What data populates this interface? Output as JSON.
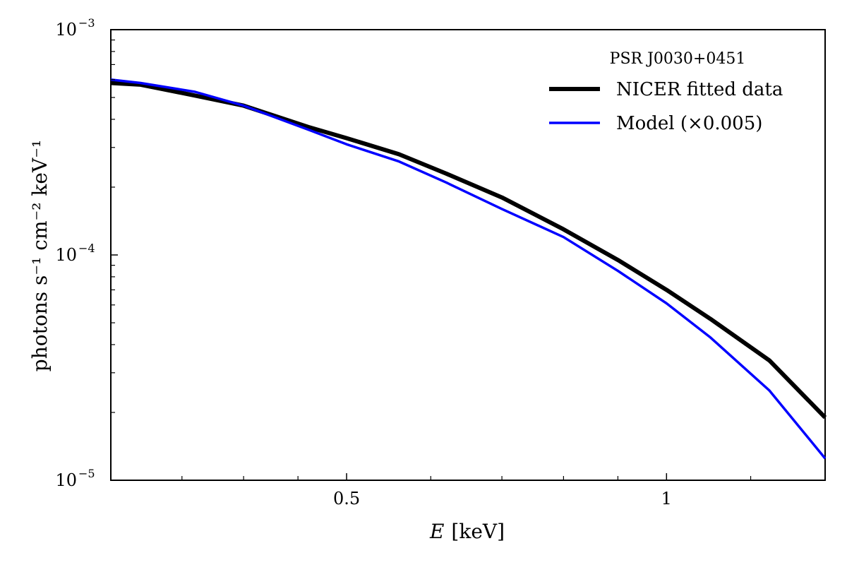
{
  "chart_data": {
    "type": "line",
    "xlabel_var": "E",
    "xlabel_unit": "[keV]",
    "ylabel": "photons s⁻¹ cm⁻² keV⁻¹",
    "xscale": "log",
    "yscale": "log",
    "xlim": [
      0.3,
      1.41
    ],
    "ylim": [
      1e-05,
      0.001
    ],
    "x_ticks": [
      {
        "value": 0.5,
        "label": "0.5"
      },
      {
        "value": 1,
        "label": "1"
      }
    ],
    "x_minor_ticks": [
      0.35,
      0.4,
      0.45,
      0.6,
      0.7,
      0.8,
      0.9,
      1.2
    ],
    "y_ticks": [
      {
        "value": 1e-05,
        "base": "10",
        "exp": "−5"
      },
      {
        "value": 0.0001,
        "base": "10",
        "exp": "−4"
      },
      {
        "value": 0.001,
        "base": "10",
        "exp": "−3"
      }
    ],
    "legend": {
      "title": "PSR J0030+0451",
      "placement": "top-right"
    },
    "series": [
      {
        "name": "NICER fitted data",
        "color": "#000000",
        "x": [
          0.3,
          0.32,
          0.36,
          0.4,
          0.46,
          0.5,
          0.56,
          0.62,
          0.7,
          0.8,
          0.9,
          1.0,
          1.1,
          1.25,
          1.41
        ],
        "y": [
          0.00058,
          0.00057,
          0.00051,
          0.00046,
          0.00037,
          0.00033,
          0.00028,
          0.00023,
          0.00018,
          0.00013,
          9.5e-05,
          7e-05,
          5.2e-05,
          3.4e-05,
          1.9e-05
        ]
      },
      {
        "name": "Model (×0.005)",
        "color": "#0000ff",
        "x": [
          0.3,
          0.32,
          0.36,
          0.4,
          0.46,
          0.5,
          0.56,
          0.62,
          0.7,
          0.8,
          0.9,
          1.0,
          1.1,
          1.25,
          1.41
        ],
        "y": [
          0.0006,
          0.00058,
          0.00053,
          0.00046,
          0.00036,
          0.00031,
          0.00026,
          0.00021,
          0.00016,
          0.00012,
          8.5e-05,
          6.1e-05,
          4.3e-05,
          2.5e-05,
          1.25e-05
        ]
      }
    ]
  }
}
